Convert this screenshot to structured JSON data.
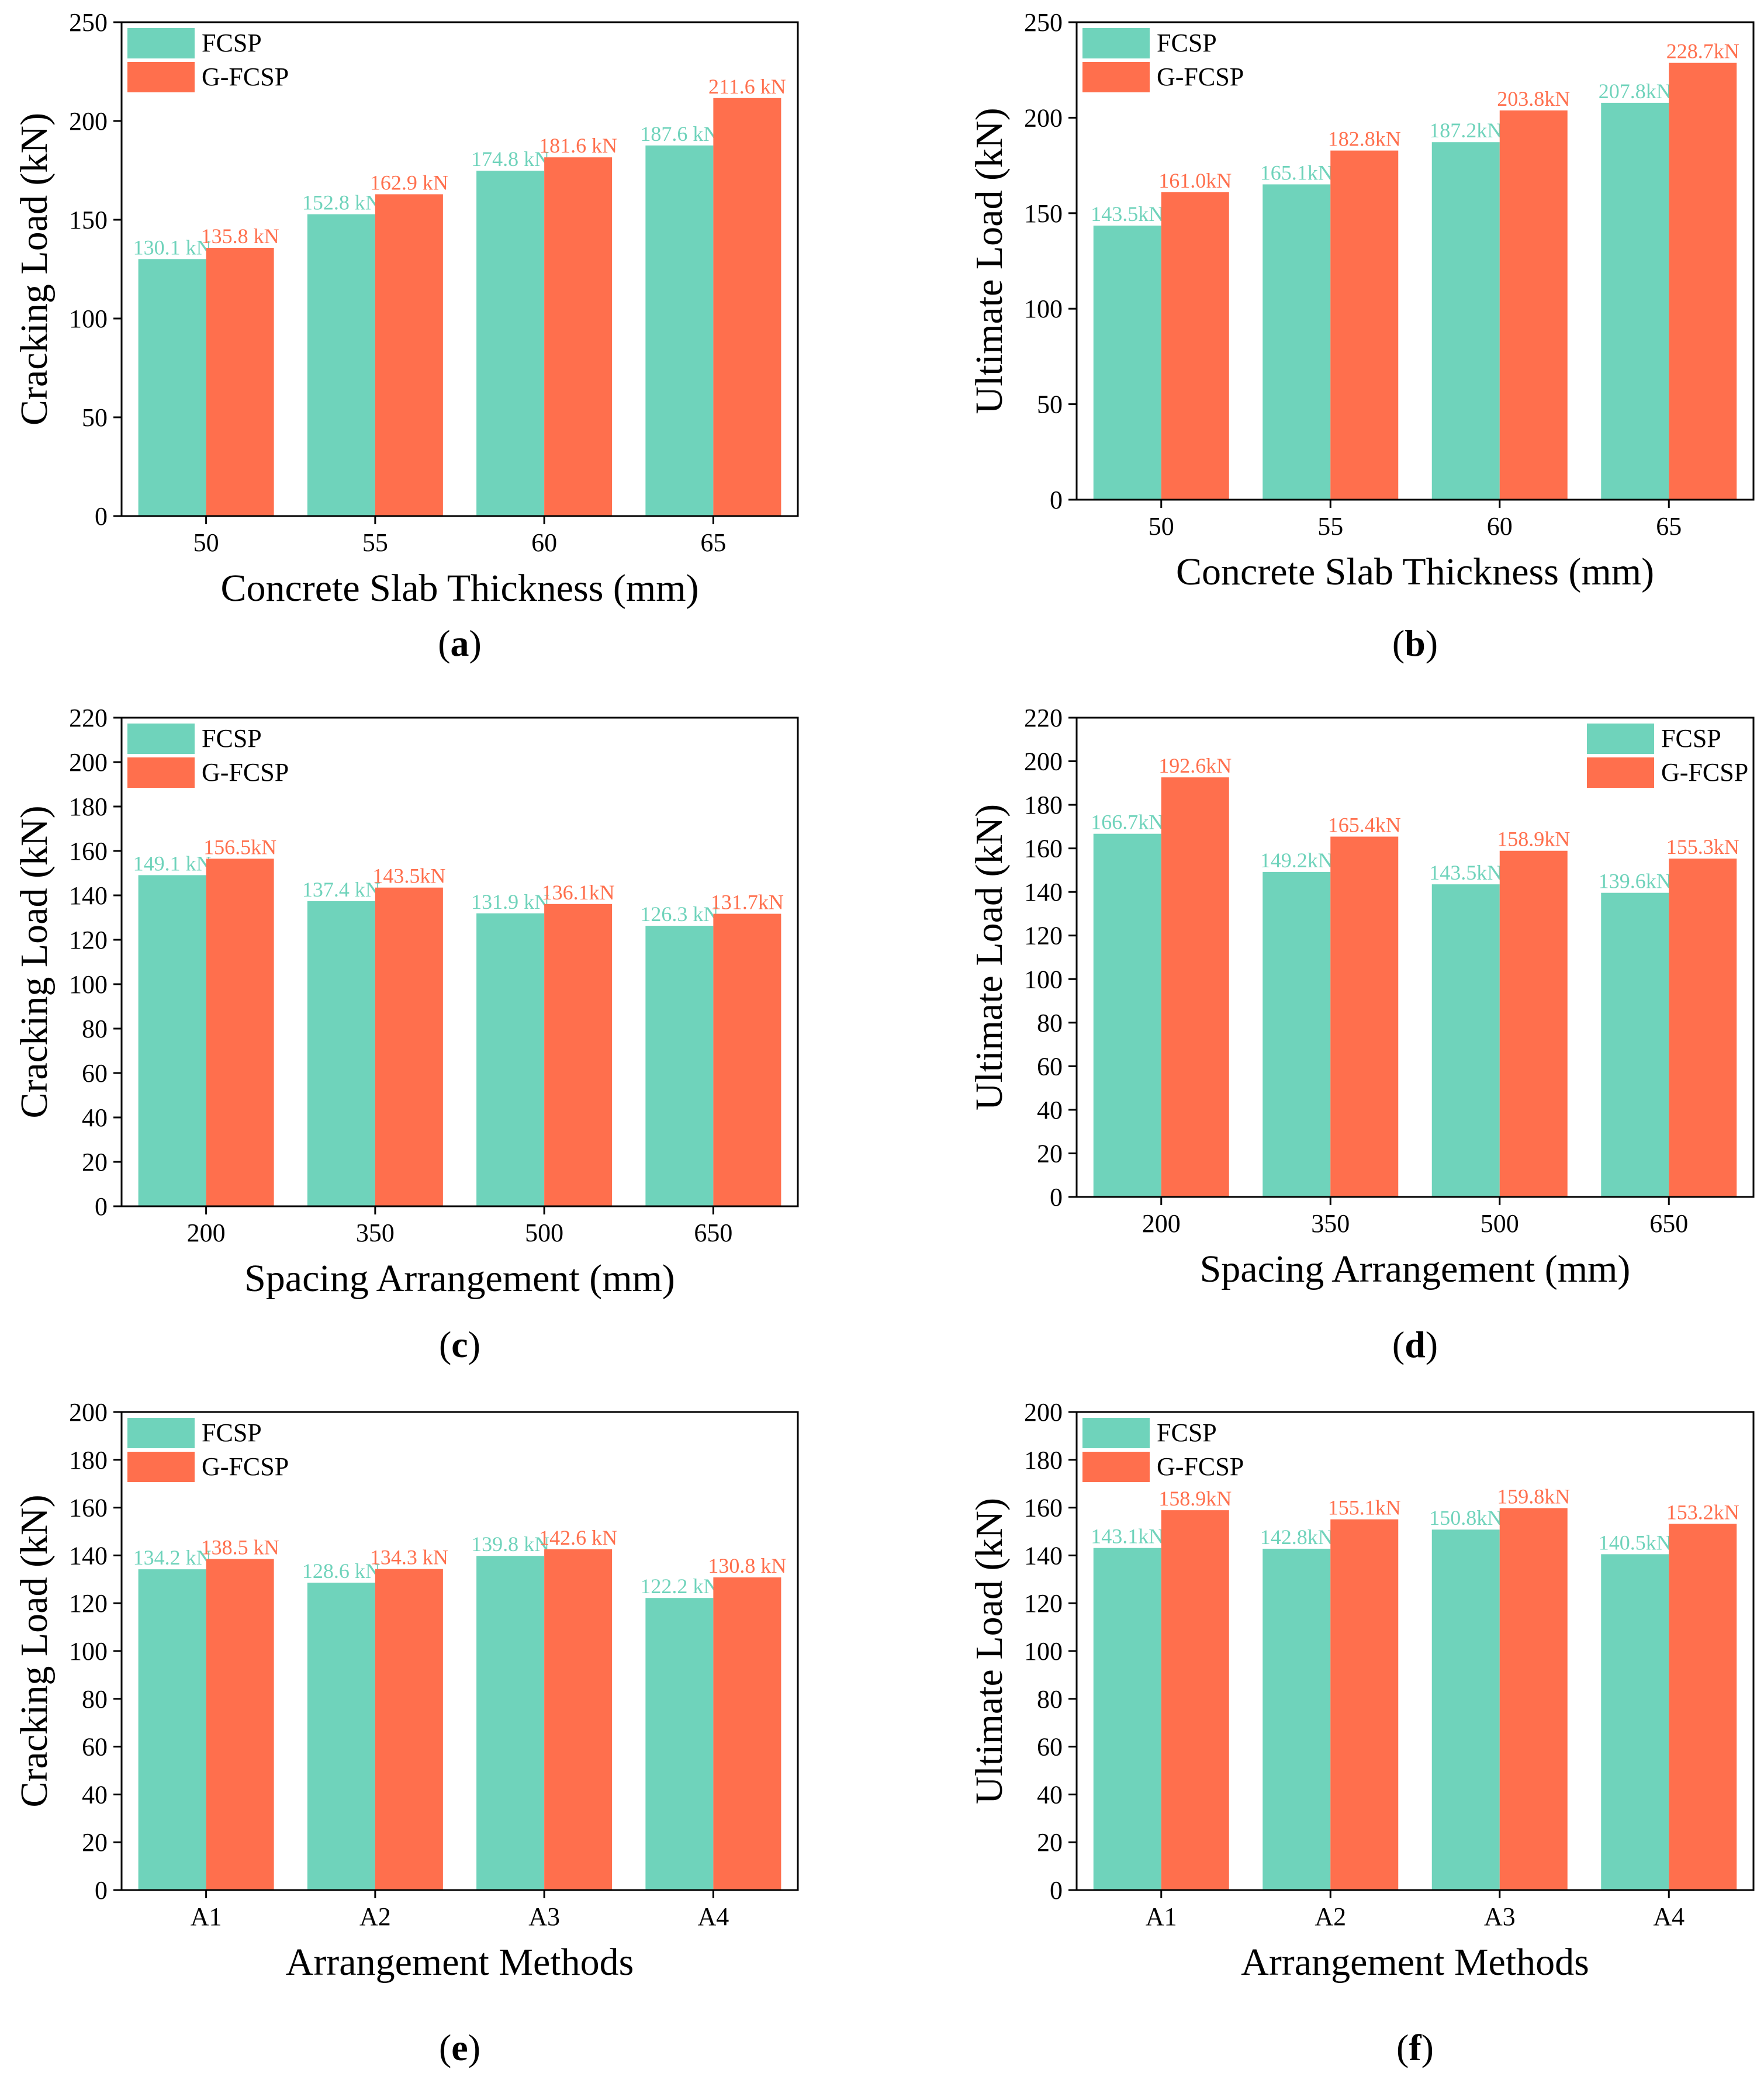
{
  "colors": {
    "fcsp": "#6fd3bb",
    "gfcsp": "#ff6f4d",
    "axis": "#000000",
    "background": "#ffffff"
  },
  "chart_data": [
    {
      "type": "bar",
      "panel_label": "a",
      "categories": [
        "50",
        "55",
        "60",
        "65"
      ],
      "series": [
        {
          "name": "FCSP",
          "values": [
            130.1,
            152.8,
            174.8,
            187.6
          ],
          "labels": [
            "130.1 kN",
            "152.8 kN",
            "174.8 kN",
            "187.6 kN"
          ]
        },
        {
          "name": "G-FCSP",
          "values": [
            135.8,
            162.9,
            181.6,
            211.6
          ],
          "labels": [
            "135.8 kN",
            "162.9 kN",
            "181.6 kN",
            "211.6 kN"
          ]
        }
      ],
      "xlabel": "Concrete Slab Thickness (mm)",
      "ylabel": "Cracking Load (kN)",
      "ylim": [
        0,
        250
      ],
      "yticks": [
        0,
        50,
        100,
        150,
        200,
        250
      ],
      "legend": "top-left",
      "grid": false
    },
    {
      "type": "bar",
      "panel_label": "b",
      "categories": [
        "50",
        "55",
        "60",
        "65"
      ],
      "series": [
        {
          "name": "FCSP",
          "values": [
            143.5,
            165.1,
            187.2,
            207.8
          ],
          "labels": [
            "143.5kN",
            "165.1kN",
            "187.2kN",
            "207.8kN"
          ]
        },
        {
          "name": "G-FCSP",
          "values": [
            161.0,
            182.8,
            203.8,
            228.7
          ],
          "labels": [
            "161.0kN",
            "182.8kN",
            "203.8kN",
            "228.7kN"
          ]
        }
      ],
      "xlabel": "Concrete Slab Thickness (mm)",
      "ylabel": "Ultimate Load (kN)",
      "ylim": [
        0,
        250
      ],
      "yticks": [
        0,
        50,
        100,
        150,
        200,
        250
      ],
      "legend": "top-left",
      "grid": false
    },
    {
      "type": "bar",
      "panel_label": "c",
      "categories": [
        "200",
        "350",
        "500",
        "650"
      ],
      "series": [
        {
          "name": "FCSP",
          "values": [
            149.1,
            137.4,
            131.9,
            126.3
          ],
          "labels": [
            "149.1 kN",
            "137.4 kN",
            "131.9 kN",
            "126.3 kN"
          ]
        },
        {
          "name": "G-FCSP",
          "values": [
            156.5,
            143.5,
            136.1,
            131.7
          ],
          "labels": [
            "156.5kN",
            "143.5kN",
            "136.1kN",
            "131.7kN"
          ]
        }
      ],
      "xlabel": "Spacing Arrangement (mm)",
      "ylabel": "Cracking Load (kN)",
      "ylim": [
        0,
        220
      ],
      "yticks": [
        0,
        20,
        40,
        60,
        80,
        100,
        120,
        140,
        160,
        180,
        200,
        220
      ],
      "legend": "top-left",
      "grid": false
    },
    {
      "type": "bar",
      "panel_label": "d",
      "categories": [
        "200",
        "350",
        "500",
        "650"
      ],
      "series": [
        {
          "name": "FCSP",
          "values": [
            166.7,
            149.2,
            143.5,
            139.6
          ],
          "labels": [
            "166.7kN",
            "149.2kN",
            "143.5kN",
            "139.6kN"
          ]
        },
        {
          "name": "G-FCSP",
          "values": [
            192.6,
            165.4,
            158.9,
            155.3
          ],
          "labels": [
            "192.6kN",
            "165.4kN",
            "158.9kN",
            "155.3kN"
          ]
        }
      ],
      "xlabel": "Spacing Arrangement (mm)",
      "ylabel": "Ultimate Load (kN)",
      "ylim": [
        0,
        220
      ],
      "yticks": [
        0,
        20,
        40,
        60,
        80,
        100,
        120,
        140,
        160,
        180,
        200,
        220
      ],
      "legend": "top-right",
      "grid": false
    },
    {
      "type": "bar",
      "panel_label": "e",
      "categories": [
        "A1",
        "A2",
        "A3",
        "A4"
      ],
      "series": [
        {
          "name": "FCSP",
          "values": [
            134.2,
            128.6,
            139.8,
            122.2
          ],
          "labels": [
            "134.2 kN",
            "128.6 kN",
            "139.8 kN",
            "122.2 kN"
          ]
        },
        {
          "name": "G-FCSP",
          "values": [
            138.5,
            134.3,
            142.6,
            130.8
          ],
          "labels": [
            "138.5 kN",
            "134.3 kN",
            "142.6 kN",
            "130.8 kN"
          ]
        }
      ],
      "xlabel": "Arrangement Methods",
      "ylabel": "Cracking Load (kN)",
      "ylim": [
        0,
        200
      ],
      "yticks": [
        0,
        20,
        40,
        60,
        80,
        100,
        120,
        140,
        160,
        180,
        200
      ],
      "legend": "top-left",
      "grid": false
    },
    {
      "type": "bar",
      "panel_label": "f",
      "categories": [
        "A1",
        "A2",
        "A3",
        "A4"
      ],
      "series": [
        {
          "name": "FCSP",
          "values": [
            143.1,
            142.8,
            150.8,
            140.5
          ],
          "labels": [
            "143.1kN",
            "142.8kN",
            "150.8kN",
            "140.5kN"
          ]
        },
        {
          "name": "G-FCSP",
          "values": [
            158.9,
            155.1,
            159.8,
            153.2
          ],
          "labels": [
            "158.9kN",
            "155.1kN",
            "159.8kN",
            "153.2kN"
          ]
        }
      ],
      "xlabel": "Arrangement Methods",
      "ylabel": "Ultimate Load (kN)",
      "ylim": [
        0,
        200
      ],
      "yticks": [
        0,
        20,
        40,
        60,
        80,
        100,
        120,
        140,
        160,
        180,
        200
      ],
      "legend": "top-left",
      "grid": false
    }
  ]
}
